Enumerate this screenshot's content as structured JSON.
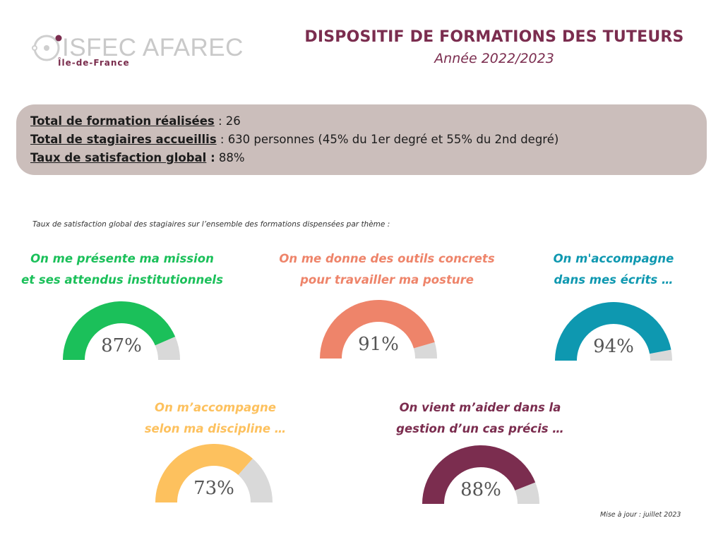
{
  "logo": {
    "name": "ISFEC AFAREC",
    "region": "Île-de-France"
  },
  "header": {
    "title": "DISPOSITIF DE FORMATIONS DES TUTEURS",
    "subtitle": "Année 2022/2023"
  },
  "summary": {
    "formations_label": "Total de formation réalisées",
    "formations_value": " : 26",
    "stagiaires_label": "Total de stagiaires accueillis",
    "stagiaires_value": " : 630 personnes (45% du 1er degré et 55% du 2nd degré)",
    "satisfaction_label": "Taux de satisfaction global",
    "satisfaction_colon": " :",
    "satisfaction_value": " 88%"
  },
  "caption": "Taux de satisfaction global des stagiaires  sur l’ensemble des formations dispensées par thème :",
  "colors": {
    "track": "#d9d9d9",
    "green": "#1bc05a",
    "salmon": "#ee846a",
    "teal": "#0e98b0",
    "yellow": "#fdc15e",
    "burgundy": "#7b2d4f"
  },
  "gauges": [
    {
      "line1": "On me présente ma mission",
      "line2": "et ses attendus institutionnels",
      "value": 87,
      "label": "87%",
      "color": "#1bc05a"
    },
    {
      "line1": "On me donne des outils concrets",
      "line2": "pour travailler ma posture",
      "value": 91,
      "label": "91%",
      "color": "#ee846a"
    },
    {
      "line1": "On m'accompagne",
      "line2": "dans mes écrits …",
      "value": 94,
      "label": "94%",
      "color": "#0e98b0"
    },
    {
      "line1": "On m’accompagne",
      "line2": "selon ma discipline …",
      "value": 73,
      "label": "73%",
      "color": "#fdc15e"
    },
    {
      "line1": "On vient m’aider dans la",
      "line2": "gestion d’un cas précis …",
      "value": 88,
      "label": "88%",
      "color": "#7b2d4f"
    }
  ],
  "footnote": "Mise à jour : juillet 2023"
}
